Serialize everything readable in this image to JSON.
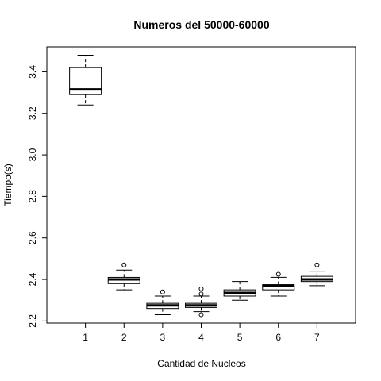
{
  "chart_data": {
    "type": "boxplot",
    "title": "Numeros del 50000-60000",
    "xlabel": "Cantidad de Nucleos",
    "ylabel": "Tiempo(s)",
    "categories": [
      "1",
      "2",
      "3",
      "4",
      "5",
      "6",
      "7"
    ],
    "ylim": [
      2.19,
      3.52
    ],
    "yticks": [
      2.2,
      2.4,
      2.6,
      2.8,
      3.0,
      3.2,
      3.4
    ],
    "ytick_labels": [
      "2.2",
      "2.4",
      "2.6",
      "2.8",
      "3.0",
      "3.2",
      "3.4"
    ],
    "boxes": [
      {
        "category": "1",
        "whisker_low": 3.24,
        "q1": 3.29,
        "median": 3.315,
        "q3": 3.42,
        "whisker_high": 3.48,
        "outliers": []
      },
      {
        "category": "2",
        "whisker_low": 2.35,
        "q1": 2.38,
        "median": 2.4,
        "q3": 2.41,
        "whisker_high": 2.445,
        "outliers": [
          2.47
        ]
      },
      {
        "category": "3",
        "whisker_low": 2.23,
        "q1": 2.26,
        "median": 2.275,
        "q3": 2.285,
        "whisker_high": 2.32,
        "outliers": [
          2.34
        ]
      },
      {
        "category": "4",
        "whisker_low": 2.245,
        "q1": 2.265,
        "median": 2.275,
        "q3": 2.285,
        "whisker_high": 2.32,
        "outliers": [
          2.33,
          2.355,
          2.23
        ]
      },
      {
        "category": "5",
        "whisker_low": 2.3,
        "q1": 2.32,
        "median": 2.335,
        "q3": 2.35,
        "whisker_high": 2.39,
        "outliers": []
      },
      {
        "category": "6",
        "whisker_low": 2.32,
        "q1": 2.35,
        "median": 2.37,
        "q3": 2.375,
        "whisker_high": 2.41,
        "outliers": [
          2.425
        ]
      },
      {
        "category": "7",
        "whisker_low": 2.37,
        "q1": 2.39,
        "median": 2.4,
        "q3": 2.415,
        "whisker_high": 2.44,
        "outliers": [
          2.47
        ]
      }
    ]
  }
}
